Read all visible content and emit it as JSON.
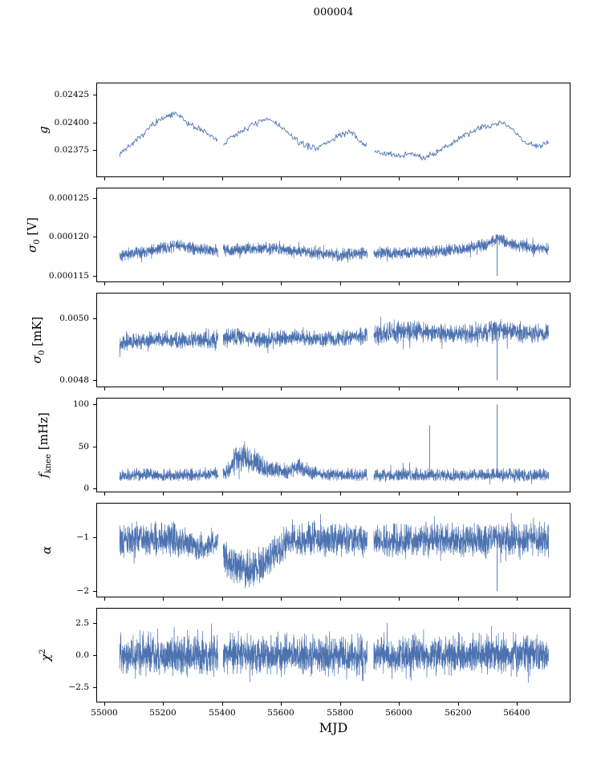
{
  "chart_data": {
    "type": "line",
    "title": "000004",
    "xlabel": "MJD",
    "color": "#4c72b0",
    "legend": "none",
    "grid": false,
    "xlim": [
      54973,
      56582
    ],
    "xticks": [
      55000,
      55200,
      55400,
      55600,
      55800,
      56000,
      56200,
      56400
    ],
    "xtick_labels": [
      "55000",
      "55200",
      "55400",
      "55600",
      "55800",
      "56000",
      "56200",
      "56400"
    ],
    "x_range": [
      55050,
      56510
    ],
    "gaps": [
      [
        55385,
        55402
      ],
      [
        55893,
        55915
      ]
    ],
    "panels": [
      {
        "ylabel": {
          "sym": "g",
          "sub": "",
          "sup": "",
          "unit": ""
        },
        "ylim": [
          0.02351,
          0.024355
        ],
        "yticks": [
          0.02375,
          0.024,
          0.02425
        ],
        "ytick_labels": [
          "0.02375",
          "0.02400",
          "0.02425"
        ],
        "n": 550,
        "dist": "tri",
        "spike_prob": 0.03,
        "spike_mult": 1.5,
        "ctrl": {
          "x": [
            55050,
            55080,
            55120,
            55160,
            55200,
            55240,
            55280,
            55320,
            55360,
            55400,
            55440,
            55480,
            55520,
            55560,
            55600,
            55640,
            55680,
            55720,
            55760,
            55800,
            55840,
            55880,
            55920,
            55960,
            56000,
            56040,
            56080,
            56120,
            56160,
            56200,
            56240,
            56280,
            56320,
            56360,
            56400,
            56440,
            56480,
            56510
          ],
          "mean": [
            0.02372,
            0.02378,
            0.02386,
            0.02398,
            0.02404,
            0.02408,
            0.024,
            0.02394,
            0.02388,
            0.0238,
            0.02388,
            0.02395,
            0.024,
            0.02403,
            0.02396,
            0.02386,
            0.02379,
            0.02377,
            0.02382,
            0.02389,
            0.02391,
            0.0238,
            0.02374,
            0.02371,
            0.0237,
            0.02372,
            0.02368,
            0.02372,
            0.02378,
            0.02384,
            0.0239,
            0.02396,
            0.02398,
            0.024,
            0.0239,
            0.0238,
            0.02379,
            0.02382
          ],
          "amp_const": 3.5e-05
        },
        "spikes": []
      },
      {
        "ylabel": {
          "sym": "σ",
          "sub": "0",
          "sup": "",
          "unit": " [V]"
        },
        "ylim": [
          0.0001143,
          0.0001262
        ],
        "yticks": [
          0.000115,
          0.00012,
          0.000125
        ],
        "ytick_labels": [
          "0.000115",
          "0.000120",
          "0.000125"
        ],
        "n": 2400,
        "dist": "tri",
        "spike_prob": 0.05,
        "spike_mult": 1.6,
        "ctrl": {
          "x": [
            55050,
            55150,
            55250,
            55350,
            55420,
            55500,
            55600,
            55700,
            55800,
            55900,
            56000,
            56100,
            56200,
            56300,
            56340,
            56380,
            56450,
            56510
          ],
          "mean": [
            0.0001176,
            0.0001183,
            0.0001189,
            0.0001182,
            0.0001183,
            0.0001185,
            0.0001185,
            0.000118,
            0.0001176,
            0.000118,
            0.0001179,
            0.0001181,
            0.0001184,
            0.000119,
            0.0001199,
            0.0001192,
            0.0001186,
            0.0001185
          ],
          "amp_const": 9e-07
        },
        "spikes": [
          {
            "x": 56335,
            "y": 0.000115
          }
        ]
      },
      {
        "ylabel": {
          "sym": "σ",
          "sub": "0",
          "sup": "",
          "unit": " [mK]"
        },
        "ylim": [
          0.00478,
          0.00508
        ],
        "yticks": [
          0.0048,
          0.005
        ],
        "ytick_labels": [
          "0.0048",
          "0.0050"
        ],
        "n": 2400,
        "dist": "tri",
        "spike_prob": 0.05,
        "spike_mult": 1.6,
        "ctrl": {
          "x": [
            55050,
            55150,
            55250,
            55350,
            55450,
            55550,
            55650,
            55750,
            55850,
            55950,
            56050,
            56150,
            56250,
            56350,
            56450,
            56510
          ],
          "mean": [
            0.00492,
            0.00493,
            0.00493,
            0.00493,
            0.00494,
            0.00493,
            0.00494,
            0.00493,
            0.00494,
            0.00495,
            0.00496,
            0.00495,
            0.00495,
            0.00496,
            0.00495,
            0.00495
          ],
          "amp": [
            3e-05,
            3e-05,
            3e-05,
            3e-05,
            3.5e-05,
            3e-05,
            3e-05,
            3e-05,
            3e-05,
            4e-05,
            4e-05,
            3.5e-05,
            3.5e-05,
            4e-05,
            3.5e-05,
            3.5e-05
          ]
        },
        "spikes": [
          {
            "x": 56335,
            "y": 0.0048
          }
        ]
      },
      {
        "ylabel": {
          "sym": "f",
          "sub": "knee",
          "sup": "",
          "unit": " [mHz]"
        },
        "ylim": [
          -4,
          107
        ],
        "yticks": [
          0,
          50,
          100
        ],
        "ytick_labels": [
          "0",
          "50",
          "100"
        ],
        "n": 2600,
        "dist": "tri",
        "skew_up": true,
        "spike_prob": 0.04,
        "spike_mult": 1.7,
        "ctrl": {
          "x": [
            55050,
            55200,
            55350,
            55420,
            55450,
            55480,
            55520,
            55560,
            55620,
            55660,
            55700,
            55800,
            55900,
            56000,
            56100,
            56200,
            56300,
            56400,
            56510
          ],
          "mean": [
            15,
            15,
            15,
            20,
            35,
            33,
            28,
            22,
            18,
            24,
            18,
            15,
            15,
            15,
            15,
            15,
            15,
            15,
            15
          ],
          "amp": [
            7,
            7,
            7,
            10,
            20,
            18,
            14,
            11,
            8,
            10,
            8,
            7,
            7,
            7,
            7,
            7,
            7,
            7,
            7
          ]
        },
        "spikes": [
          {
            "x": 56105,
            "y": 75
          },
          {
            "x": 56335,
            "y": 100
          }
        ]
      },
      {
        "ylabel": {
          "sym": "α",
          "sub": "",
          "sup": "",
          "unit": ""
        },
        "ylim": [
          -2.1,
          -0.38
        ],
        "yticks": [
          -2,
          -1
        ],
        "ytick_labels": [
          "−2",
          "−1"
        ],
        "n": 2600,
        "dist": "tri",
        "spike_prob": 0.05,
        "spike_mult": 1.5,
        "ctrl": {
          "x": [
            55050,
            55150,
            55250,
            55300,
            55340,
            55380,
            55420,
            55460,
            55500,
            55540,
            55580,
            55620,
            55700,
            55800,
            55900,
            56000,
            56100,
            56200,
            56300,
            56400,
            56510
          ],
          "mean": [
            -1.05,
            -1.05,
            -1.05,
            -1.15,
            -1.2,
            -1.1,
            -1.45,
            -1.6,
            -1.6,
            -1.5,
            -1.3,
            -1.1,
            -1.05,
            -1.05,
            -1.05,
            -1.05,
            -1.05,
            -1.05,
            -1.05,
            -1.05,
            -1.05
          ],
          "amp": [
            0.35,
            0.35,
            0.35,
            0.28,
            0.25,
            0.3,
            0.4,
            0.4,
            0.4,
            0.38,
            0.35,
            0.35,
            0.35,
            0.35,
            0.35,
            0.35,
            0.35,
            0.35,
            0.35,
            0.35,
            0.35
          ]
        },
        "spikes": [
          {
            "x": 56335,
            "y": -2.0
          }
        ]
      },
      {
        "ylabel": {
          "sym": "χ",
          "sub": "",
          "sup": "2",
          "unit": ""
        },
        "ylim": [
          -3.6,
          3.6
        ],
        "yticks": [
          -2.5,
          0,
          2.5
        ],
        "ytick_labels": [
          "−2.5",
          "0.0",
          "2.5"
        ],
        "n": 3000,
        "dist": "quad",
        "spike_prob": 0.04,
        "spike_mult": 1.5,
        "ctrl": {
          "x": [
            55050,
            56510
          ],
          "mean": [
            0,
            0
          ],
          "amp_const": 1.55
        },
        "spikes": []
      }
    ]
  }
}
